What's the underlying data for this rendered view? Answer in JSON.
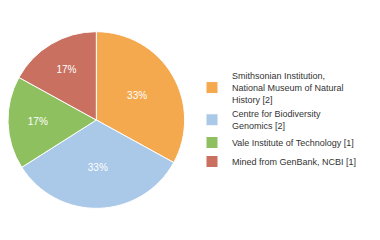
{
  "chart_data": {
    "type": "pie",
    "categories": [
      "Smithsonian Institution,\nNational Museum of Natural\nHistory [2]",
      "Centre for Biodiversity\nGenomics [2]",
      "Vale Institute of Technology [1]",
      "Mined from GenBank, NCBI [1]"
    ],
    "values": [
      33,
      33,
      17,
      17
    ],
    "value_labels": [
      "33%",
      "33%",
      "17%",
      "17%"
    ],
    "colors": [
      "#f5a94e",
      "#aac8e8",
      "#8ec060",
      "#c97060"
    ],
    "data_labels": true,
    "legend": "right"
  }
}
